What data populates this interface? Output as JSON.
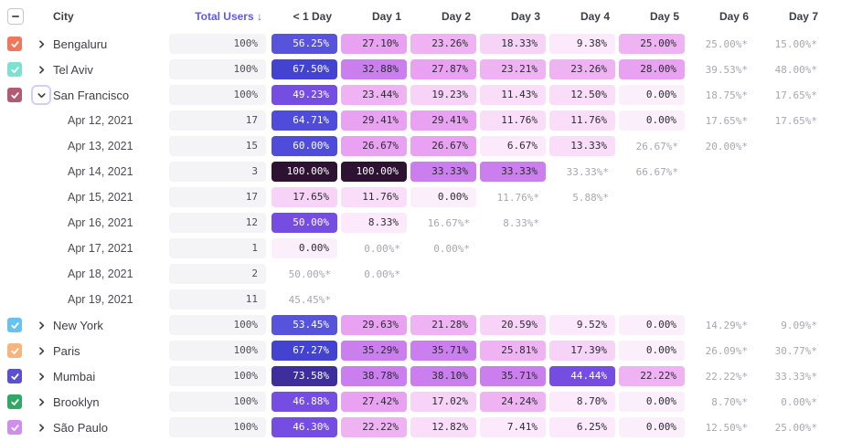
{
  "header": {
    "select_all_state": "indeterminate",
    "city": "City",
    "total_users": "Total Users",
    "sort_arrow": "↓",
    "sort_color": "#6159e5",
    "day_columns": [
      "< 1 Day",
      "Day 1",
      "Day 2",
      "Day 3",
      "Day 4",
      "Day 5",
      "Day 6",
      "Day 7"
    ]
  },
  "scale": [
    {
      "min": 90,
      "bg": "#2e1232",
      "text": "#ffffff"
    },
    {
      "min": 70,
      "bg": "#3e2d9c",
      "text": "#ffffff"
    },
    {
      "min": 65,
      "bg": "#4443d1",
      "text": "#ffffff"
    },
    {
      "min": 58,
      "bg": "#4f4cdb",
      "text": "#ffffff"
    },
    {
      "min": 52,
      "bg": "#5753dd",
      "text": "#ffffff"
    },
    {
      "min": 43,
      "bg": "#764de3",
      "text": "#ffffff"
    },
    {
      "min": 31,
      "bg": "#cb7eee",
      "text": "#2b2b33"
    },
    {
      "min": 26,
      "bg": "#e9a1f1",
      "text": "#2b2b33"
    },
    {
      "min": 21,
      "bg": "#efb3f3",
      "text": "#2b2b33"
    },
    {
      "min": 16,
      "bg": "#f7d4f7",
      "text": "#2b2b33"
    },
    {
      "min": 10,
      "bg": "#fadef9",
      "text": "#2b2b33"
    },
    {
      "min": 0.01,
      "bg": "#fce9fb",
      "text": "#2b2b33"
    },
    {
      "min": 0,
      "bg": "#fbeffb",
      "text": "#2b2b33"
    }
  ],
  "star_text_color": "#a7a7b3",
  "rows": [
    {
      "type": "city",
      "label": "Bengaluru",
      "checkbox_color": "#f2765b",
      "expanded": false,
      "total": "100%",
      "cells": [
        "56.25%",
        "27.10%",
        "23.26%",
        "18.33%",
        "9.38%",
        "25.00%",
        "25.00%*",
        "15.00%*"
      ]
    },
    {
      "type": "city",
      "label": "Tel Aviv",
      "checkbox_color": "#7de1d2",
      "expanded": false,
      "total": "100%",
      "cells": [
        "67.50%",
        "32.88%",
        "27.87%",
        "23.21%",
        "23.26%",
        "28.00%",
        "39.53%*",
        "48.00%*"
      ]
    },
    {
      "type": "city",
      "label": "San Francisco",
      "checkbox_color": "#b25c74",
      "expanded": true,
      "total": "100%",
      "cells": [
        "49.23%",
        "23.44%",
        "19.23%",
        "11.43%",
        "12.50%",
        "0.00%",
        "18.75%*",
        "17.65%*"
      ]
    },
    {
      "type": "date",
      "label": "Apr 12, 2021",
      "total": "17",
      "cells": [
        "64.71%",
        "29.41%",
        "29.41%",
        "11.76%",
        "11.76%",
        "0.00%",
        "17.65%*",
        "17.65%*"
      ]
    },
    {
      "type": "date",
      "label": "Apr 13, 2021",
      "total": "15",
      "cells": [
        "60.00%",
        "26.67%",
        "26.67%",
        "6.67%",
        "13.33%",
        "26.67%*",
        "20.00%*",
        ""
      ]
    },
    {
      "type": "date",
      "label": "Apr 14, 2021",
      "total": "3",
      "cells": [
        "100.00%",
        "100.00%",
        "33.33%",
        "33.33%",
        "33.33%*",
        "66.67%*",
        "",
        ""
      ]
    },
    {
      "type": "date",
      "label": "Apr 15, 2021",
      "total": "17",
      "cells": [
        "17.65%",
        "11.76%",
        "0.00%",
        "11.76%*",
        "5.88%*",
        "",
        "",
        ""
      ]
    },
    {
      "type": "date",
      "label": "Apr 16, 2021",
      "total": "12",
      "cells": [
        "50.00%",
        "8.33%",
        "16.67%*",
        "8.33%*",
        "",
        "",
        "",
        ""
      ]
    },
    {
      "type": "date",
      "label": "Apr 17, 2021",
      "total": "1",
      "cells": [
        "0.00%",
        "0.00%*",
        "0.00%*",
        "",
        "",
        "",
        "",
        ""
      ]
    },
    {
      "type": "date",
      "label": "Apr 18, 2021",
      "total": "2",
      "cells": [
        "50.00%*",
        "0.00%*",
        "",
        "",
        "",
        "",
        "",
        ""
      ]
    },
    {
      "type": "date",
      "label": "Apr 19, 2021",
      "total": "11",
      "cells": [
        "45.45%*",
        "",
        "",
        "",
        "",
        "",
        "",
        ""
      ]
    },
    {
      "type": "city",
      "label": "New York",
      "checkbox_color": "#67c2ef",
      "expanded": false,
      "total": "100%",
      "cells": [
        "53.45%",
        "29.63%",
        "21.28%",
        "20.59%",
        "9.52%",
        "0.00%",
        "14.29%*",
        "9.09%*"
      ]
    },
    {
      "type": "city",
      "label": "Paris",
      "checkbox_color": "#f9b37f",
      "expanded": false,
      "total": "100%",
      "cells": [
        "67.27%",
        "35.29%",
        "35.71%",
        "25.81%",
        "17.39%",
        "0.00%",
        "26.09%*",
        "30.77%*"
      ]
    },
    {
      "type": "city",
      "label": "Mumbai",
      "checkbox_color": "#5a51ce",
      "expanded": false,
      "total": "100%",
      "cells": [
        "73.58%",
        "38.78%",
        "38.10%",
        "35.71%",
        "44.44%",
        "22.22%",
        "22.22%*",
        "33.33%*"
      ]
    },
    {
      "type": "city",
      "label": "Brooklyn",
      "checkbox_color": "#30a865",
      "expanded": false,
      "total": "100%",
      "cells": [
        "46.88%",
        "27.42%",
        "17.02%",
        "24.24%",
        "8.70%",
        "0.00%",
        "8.70%*",
        "0.00%*"
      ]
    },
    {
      "type": "city",
      "label": "São Paulo",
      "checkbox_color": "#cf8eec",
      "expanded": false,
      "total": "100%",
      "cells": [
        "46.30%",
        "22.22%",
        "12.82%",
        "7.41%",
        "6.25%",
        "0.00%",
        "12.50%*",
        "25.00%*"
      ]
    }
  ]
}
